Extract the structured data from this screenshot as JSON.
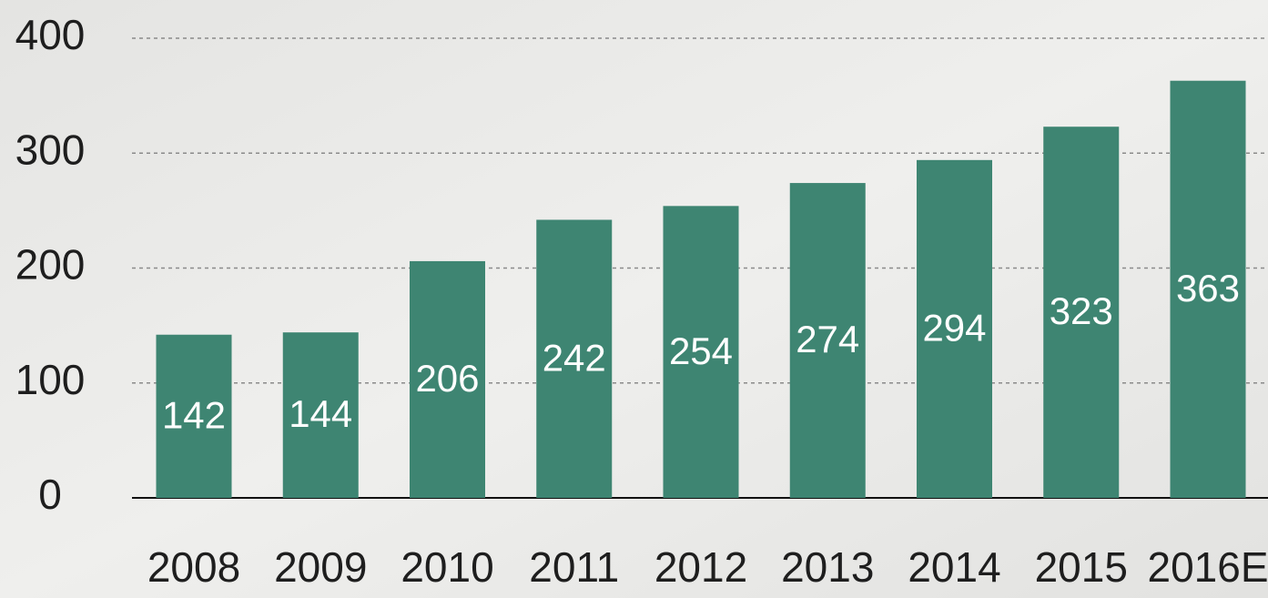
{
  "chart_data": {
    "type": "bar",
    "categories": [
      "2008",
      "2009",
      "2010",
      "2011",
      "2012",
      "2013",
      "2014",
      "2015",
      "2016E"
    ],
    "values": [
      142,
      144,
      206,
      242,
      254,
      274,
      294,
      323,
      363
    ],
    "color": "#3e8572",
    "ylim": [
      0,
      400
    ],
    "yticks": [
      0,
      100,
      200,
      300,
      400
    ],
    "grid": true
  }
}
